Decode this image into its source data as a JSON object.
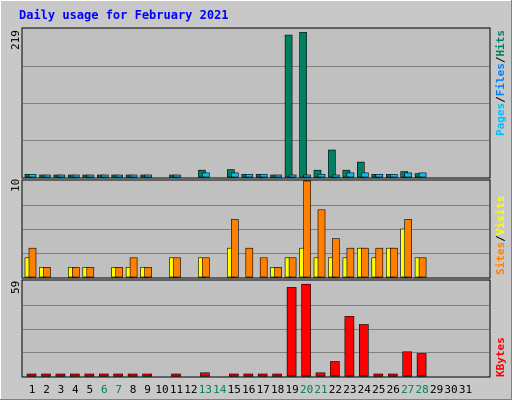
{
  "chart_data": [
    {
      "type": "bar",
      "title": "Daily usage for February 2021",
      "panel": "hits-files-pages",
      "ymax_label": "219",
      "ylim": [
        0,
        219
      ],
      "legend": {
        "pages": "Pages",
        "files": "Files",
        "hits": "Hits",
        "sep": "/"
      },
      "categories": [
        "1",
        "2",
        "3",
        "4",
        "5",
        "6",
        "7",
        "8",
        "9",
        "10",
        "11",
        "12",
        "13",
        "14",
        "15",
        "16",
        "17",
        "18",
        "19",
        "20",
        "21",
        "22",
        "23",
        "24",
        "25",
        "26",
        "27",
        "28",
        "29",
        "30",
        "31"
      ],
      "weekend_days": [
        "6",
        "7",
        "13",
        "14",
        "20",
        "21",
        "27",
        "28"
      ],
      "series": [
        {
          "name": "Hits",
          "color": "#008060",
          "values": [
            4,
            2,
            1,
            2,
            2,
            1,
            1,
            3,
            2,
            0,
            3,
            0,
            10,
            0,
            11,
            4,
            4,
            2,
            210,
            214,
            10,
            40,
            10,
            22,
            4,
            4,
            8,
            5,
            0,
            0,
            0
          ]
        },
        {
          "name": "Files",
          "color": "#00c0ff",
          "values": [
            4,
            2,
            1,
            2,
            2,
            1,
            1,
            2,
            2,
            0,
            3,
            0,
            6,
            0,
            6,
            4,
            4,
            2,
            2,
            2,
            4,
            2,
            6,
            6,
            4,
            4,
            6,
            6,
            0,
            0,
            0
          ]
        },
        {
          "name": "Pages",
          "color": "#00c0ff",
          "values": [
            0,
            0,
            0,
            0,
            0,
            0,
            0,
            0,
            0,
            0,
            0,
            0,
            0,
            0,
            0,
            0,
            0,
            0,
            0,
            0,
            0,
            0,
            0,
            0,
            0,
            0,
            0,
            0,
            0,
            0,
            0
          ]
        }
      ]
    },
    {
      "type": "bar",
      "panel": "visits-sites",
      "ymax_label": "10",
      "ylim": [
        0,
        10
      ],
      "legend": {
        "sites": "Sites",
        "visits": "Visits",
        "sep": "/"
      },
      "series": [
        {
          "name": "Visits",
          "color": "#ffff00",
          "values": [
            2,
            1,
            0,
            1,
            1,
            0,
            1,
            1,
            1,
            0,
            2,
            0,
            2,
            0,
            3,
            0,
            0,
            1,
            2,
            3,
            2,
            2,
            2,
            3,
            2,
            3,
            5,
            2,
            0,
            0,
            0
          ]
        },
        {
          "name": "Sites",
          "color": "#ff8000",
          "values": [
            3,
            1,
            0,
            1,
            1,
            0,
            1,
            2,
            1,
            0,
            2,
            0,
            2,
            0,
            6,
            3,
            2,
            1,
            2,
            10,
            7,
            4,
            3,
            3,
            3,
            3,
            6,
            2,
            0,
            0,
            0
          ]
        }
      ]
    },
    {
      "type": "bar",
      "panel": "kbytes",
      "ymax_label": "59",
      "ylim": [
        0,
        59
      ],
      "legend": {
        "kbytes": "KBytes"
      },
      "series": [
        {
          "name": "KBytes",
          "color": "#ff0000",
          "values": [
            1,
            0.5,
            0.4,
            0.5,
            0.5,
            0.3,
            0.3,
            0.5,
            0.5,
            0,
            1,
            0,
            2,
            0,
            1,
            0.5,
            1,
            0.5,
            55,
            57,
            2,
            9,
            37,
            32,
            1,
            1,
            15,
            14,
            0,
            0,
            0
          ]
        }
      ]
    }
  ]
}
